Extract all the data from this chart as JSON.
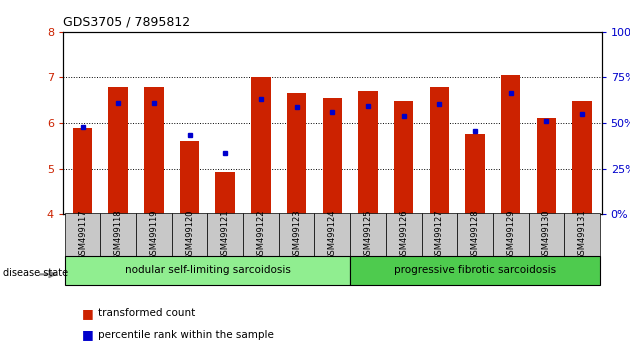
{
  "title": "GDS3705 / 7895812",
  "samples": [
    "GSM499117",
    "GSM499118",
    "GSM499119",
    "GSM499120",
    "GSM499121",
    "GSM499122",
    "GSM499123",
    "GSM499124",
    "GSM499125",
    "GSM499126",
    "GSM499127",
    "GSM499128",
    "GSM499129",
    "GSM499130",
    "GSM499131"
  ],
  "red_values": [
    5.9,
    6.78,
    6.78,
    5.6,
    4.93,
    7.0,
    6.65,
    6.55,
    6.7,
    6.48,
    6.78,
    5.75,
    7.05,
    6.1,
    6.48
  ],
  "blue_values": [
    5.92,
    6.43,
    6.44,
    5.73,
    5.35,
    6.52,
    6.35,
    6.25,
    6.37,
    6.15,
    6.42,
    5.82,
    6.65,
    6.05,
    6.2
  ],
  "ylim_left": [
    4,
    8
  ],
  "ylim_right": [
    0,
    100
  ],
  "yticks_left": [
    4,
    5,
    6,
    7,
    8
  ],
  "yticks_right": [
    0,
    25,
    50,
    75,
    100
  ],
  "bar_color": "#cc2200",
  "dot_color": "#0000cc",
  "group1_label": "nodular self-limiting sarcoidosis",
  "group2_label": "progressive fibrotic sarcoidosis",
  "group1_count": 8,
  "group2_count": 7,
  "disease_state_label": "disease state",
  "legend_red": "transformed count",
  "legend_blue": "percentile rank within the sample",
  "tick_label_color_left": "#cc2200",
  "tick_label_color_right": "#0000cc",
  "bar_width": 0.55,
  "group_bg1": "#90ee90",
  "group_bg2": "#4ecb4e",
  "xticklabel_bg": "#c8c8c8"
}
